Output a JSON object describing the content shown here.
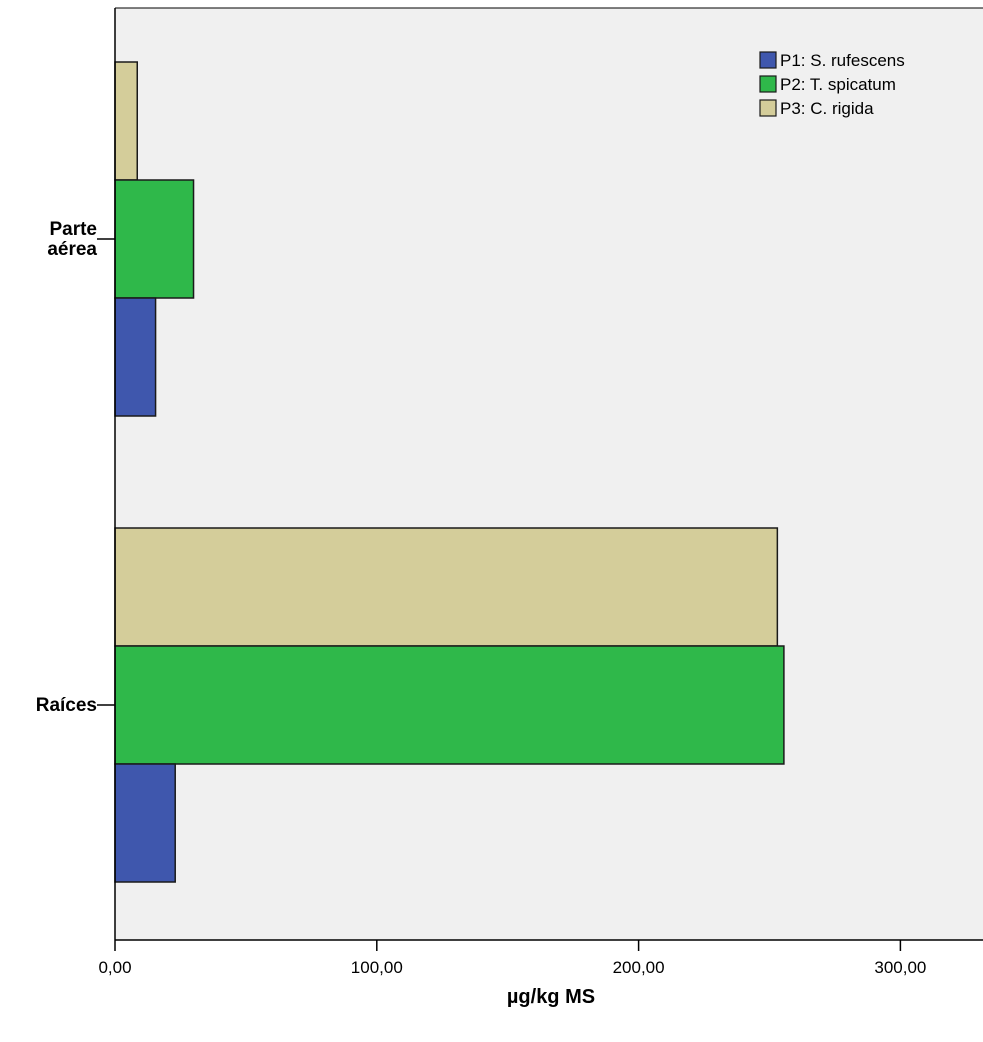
{
  "chart_data": {
    "type": "bar",
    "orientation": "horizontal",
    "categories": [
      "Parte aérea",
      "Raíces"
    ],
    "category_lines": [
      [
        "Parte",
        "aérea"
      ],
      [
        "Raíces"
      ]
    ],
    "series": [
      {
        "name": "P1: S. rufescens",
        "color": "#3f57ad",
        "values": [
          15.5,
          23
        ]
      },
      {
        "name": "P2: T. spicatum",
        "color": "#2fb84a",
        "values": [
          30,
          255.5
        ]
      },
      {
        "name": "P3: C. rigida",
        "color": "#d4cd9a",
        "values": [
          8.5,
          253
        ]
      }
    ],
    "xlabel": "µg/kg MS",
    "ylabel": "",
    "xlim": [
      0,
      332
    ],
    "xticks": [
      0,
      100,
      200,
      300
    ],
    "xtick_labels": [
      "0,00",
      "100,00",
      "200,00",
      "300,00"
    ],
    "grid": false,
    "legend": "top-right",
    "plot_background": "#f0f0f0"
  }
}
